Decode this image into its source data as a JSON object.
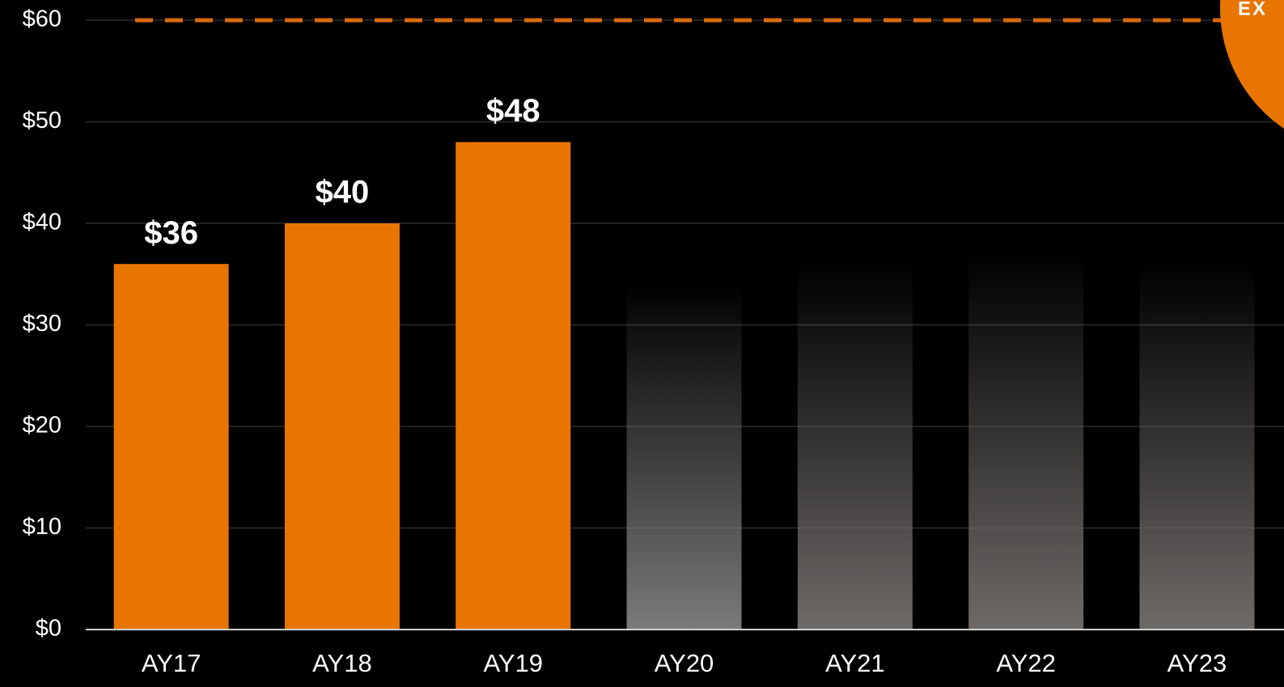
{
  "chart_data": {
    "type": "bar",
    "categories": [
      "AY17",
      "AY18",
      "AY19",
      "AY20",
      "AY21",
      "AY22",
      "AY23"
    ],
    "values": [
      36,
      40,
      48,
      34,
      36,
      37,
      36
    ],
    "value_labels": [
      "$36",
      "$40",
      "$48",
      null,
      null,
      null,
      null
    ],
    "colors": [
      "#e87500",
      "#e87500",
      "#e87500",
      "#7a7a7a",
      "#6e6a68",
      "#6e6a68",
      "#6e6a68"
    ],
    "faded": [
      false,
      false,
      false,
      true,
      true,
      true,
      true
    ],
    "ylim": [
      0,
      60
    ],
    "yticks": [
      {
        "value": 0,
        "label": "$0"
      },
      {
        "value": 10,
        "label": "$10"
      },
      {
        "value": 20,
        "label": "$20"
      },
      {
        "value": 30,
        "label": "$30"
      },
      {
        "value": 40,
        "label": "$40"
      },
      {
        "value": 50,
        "label": "$50"
      },
      {
        "value": 60,
        "label": "$60"
      }
    ],
    "grid": true,
    "reference_line": {
      "value": 60,
      "color": "#d96a0c",
      "style": "dashed"
    },
    "annotation": "EX"
  }
}
